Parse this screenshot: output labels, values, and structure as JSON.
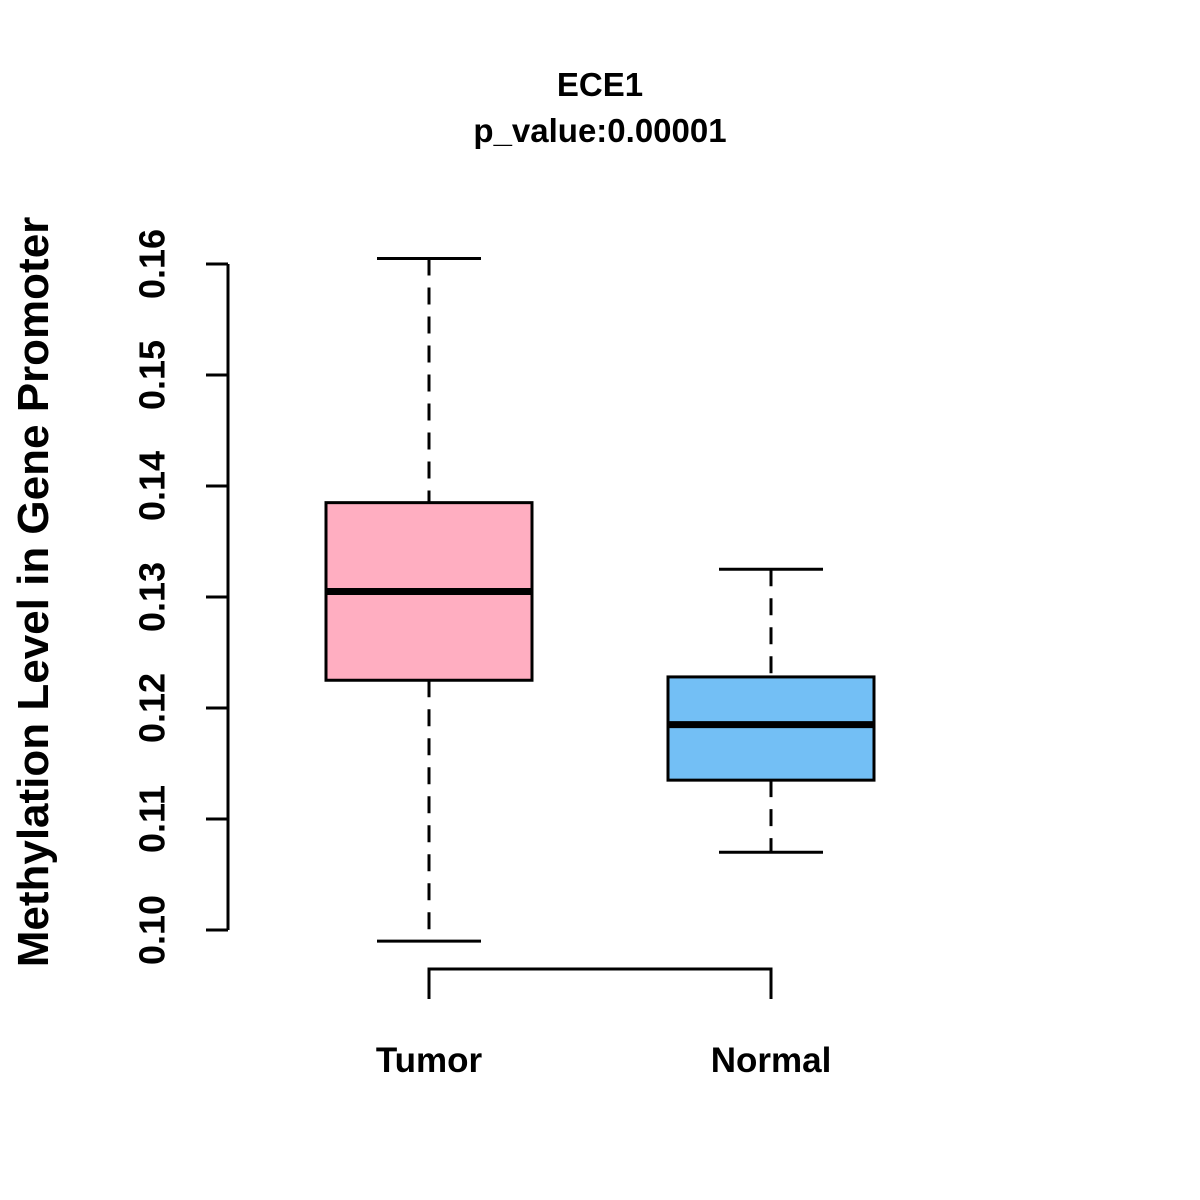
{
  "chart_data": {
    "type": "boxplot",
    "title": "ECE1",
    "subtitle": "p_value:0.00001",
    "ylabel": "Methylation Level in Gene Promoter",
    "xlabel": "",
    "categories": [
      "Tumor",
      "Normal"
    ],
    "ytick_labels": [
      "0.10",
      "0.11",
      "0.12",
      "0.13",
      "0.14",
      "0.15",
      "0.16"
    ],
    "axis_range": [
      0.1,
      0.16
    ],
    "grid": false,
    "legend": false,
    "series": [
      {
        "name": "Tumor",
        "fill": "#ffaec1",
        "whisker_low": 0.099,
        "q1": 0.1225,
        "median": 0.1305,
        "q3": 0.1385,
        "whisker_high": 0.1605
      },
      {
        "name": "Normal",
        "fill": "#73bff5",
        "whisker_low": 0.107,
        "q1": 0.1135,
        "median": 0.1185,
        "q3": 0.1228,
        "whisker_high": 0.1325
      }
    ],
    "colors": {
      "line": "#000000",
      "background": "#ffffff"
    }
  }
}
